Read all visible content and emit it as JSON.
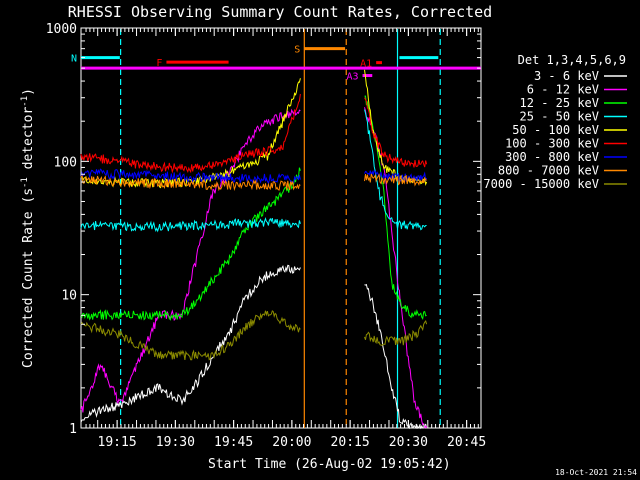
{
  "chart_data": {
    "type": "line",
    "title": "RHESSI Observing Summary Count Rates, Corrected",
    "xlabel": "Start Time (26-Aug-02 19:05:42)",
    "ylabel": "Corrected Count Rate (s⁻¹ detector⁻¹)",
    "ylabel_parts": {
      "a": "Corrected Count Rate (s",
      "b": "-1",
      "c": " detector",
      "d": "-1",
      "e": ")"
    },
    "y_scale": "log",
    "ylim": [
      1,
      1000
    ],
    "xlim_minutes": [
      0,
      103
    ],
    "y_ticks": [
      "1",
      "10",
      "100",
      "1000"
    ],
    "x_ticks": [
      {
        "label": "19:15",
        "min": 9.3
      },
      {
        "label": "19:30",
        "min": 24.3
      },
      {
        "label": "19:45",
        "min": 39.3
      },
      {
        "label": "20:00",
        "min": 54.3
      },
      {
        "label": "20:15",
        "min": 69.3
      },
      {
        "label": "20:30",
        "min": 84.3
      },
      {
        "label": "20:45",
        "min": 99.3
      }
    ],
    "legend_title": "Det 1,3,4,5,6,9",
    "legend_position": "right",
    "series": [
      {
        "name": "3 - 6 keV",
        "color": "#ffffff",
        "segments": [
          {
            "x": [
              0,
              10,
              20,
              26,
              30,
              34,
              38,
              42,
              46,
              50,
              56.5
            ],
            "y": [
              1.2,
              1.5,
              2.0,
              1.6,
              2.2,
              3.5,
              5,
              9,
              13,
              15,
              16
            ]
          },
          {
            "x": [
              73,
              75,
              78,
              80,
              82,
              86,
              89
            ],
            "y": [
              12,
              9,
              4,
              2,
              1.2,
              1,
              1
            ]
          }
        ]
      },
      {
        "name": "6 - 12 keV",
        "color": "#ff00ff",
        "segments": [
          {
            "x": [
              0,
              5,
              10,
              20,
              26,
              30,
              34,
              38,
              42,
              46,
              50,
              54,
              56.5
            ],
            "y": [
              1.3,
              3,
              1.5,
              7,
              7,
              20,
              60,
              80,
              130,
              180,
              210,
              230,
              240
            ]
          },
          {
            "x": [
              73,
              75,
              78,
              80,
              83,
              86,
              89
            ],
            "y": [
              250,
              180,
              90,
              30,
              6,
              1.5,
              1
            ]
          }
        ]
      },
      {
        "name": "12 - 25 keV",
        "color": "#00ff00",
        "segments": [
          {
            "x": [
              0,
              10,
              20,
              26,
              30,
              34,
              38,
              42,
              46,
              50,
              54,
              56.5
            ],
            "y": [
              7,
              7,
              7,
              7,
              9,
              13,
              18,
              30,
              40,
              50,
              65,
              85
            ]
          },
          {
            "x": [
              73,
              75,
              78,
              80,
              83,
              86,
              89
            ],
            "y": [
              320,
              200,
              60,
              12,
              8,
              7,
              7
            ]
          }
        ]
      },
      {
        "name": "25 - 50 keV",
        "color": "#00ffff",
        "segments": [
          {
            "x": [
              0,
              10,
              20,
              30,
              40,
              50,
              56.5
            ],
            "y": [
              33,
              33,
              32,
              33,
              34,
              35,
              34
            ]
          },
          {
            "x": [
              73,
              75,
              77,
              79,
              81,
              86,
              89
            ],
            "y": [
              250,
              120,
              55,
              38,
              34,
              33,
              33
            ]
          }
        ]
      },
      {
        "name": "50 - 100 keV",
        "color": "#ffff00",
        "segments": [
          {
            "x": [
              0,
              10,
              20,
              30,
              38,
              44,
              48,
              52,
              56.5
            ],
            "y": [
              72,
              70,
              68,
              70,
              82,
              95,
              110,
              200,
              420
            ]
          },
          {
            "x": [
              73,
              75,
              78,
              82,
              86,
              89
            ],
            "y": [
              500,
              180,
              90,
              75,
              70,
              70
            ]
          }
        ]
      },
      {
        "name": "100 - 300 keV",
        "color": "#ff0000",
        "segments": [
          {
            "x": [
              0,
              10,
              20,
              30,
              38,
              44,
              48,
              52,
              56.5
            ],
            "y": [
              110,
              100,
              90,
              90,
              100,
              115,
              120,
              125,
              320
            ]
          },
          {
            "x": [
              73,
              75,
              78,
              82,
              86,
              89
            ],
            "y": [
              320,
              170,
              110,
              100,
              95,
              95
            ]
          }
        ]
      },
      {
        "name": "300 - 800 keV",
        "color": "#0000ff",
        "segments": [
          {
            "x": [
              0,
              10,
              20,
              30,
              40,
              50,
              56.5
            ],
            "y": [
              82,
              80,
              78,
              76,
              75,
              74,
              73
            ]
          },
          {
            "x": [
              73,
              78,
              82,
              86,
              89
            ],
            "y": [
              80,
              78,
              76,
              75,
              75
            ]
          }
        ]
      },
      {
        "name": "800 - 7000 keV",
        "color": "#ff8800",
        "segments": [
          {
            "x": [
              0,
              10,
              20,
              30,
              40,
              50,
              56.5
            ],
            "y": [
              73,
              70,
              68,
              67,
              66,
              66,
              66
            ]
          },
          {
            "x": [
              73,
              78,
              82,
              86,
              89
            ],
            "y": [
              75,
              73,
              72,
              72,
              72
            ]
          }
        ]
      },
      {
        "name": "7000 - 15000 keV",
        "color": "#8b8b00",
        "segments": [
          {
            "x": [
              0,
              10,
              20,
              26,
              30,
              34,
              38,
              42,
              46,
              50,
              53,
              56.5
            ],
            "y": [
              6,
              5,
              3.5,
              3.5,
              3.5,
              3.5,
              4.2,
              5.5,
              7,
              7,
              6,
              5.5
            ]
          },
          {
            "x": [
              73,
              76,
              80,
              83,
              86,
              89
            ],
            "y": [
              5,
              4.5,
              4.5,
              4.5,
              5,
              6
            ]
          }
        ]
      }
    ],
    "annotations": [
      {
        "label": "N",
        "color": "#00ffff",
        "x1": 0,
        "x2": 10,
        "y": 600
      },
      {
        "label": "",
        "color": "#00ffff",
        "x1": 82,
        "x2": 92,
        "y": 600
      },
      {
        "label": "F",
        "color": "#ff0000",
        "x1": 22,
        "x2": 38,
        "y": 555
      },
      {
        "label": "S",
        "color": "#ff8800",
        "x1": 57.5,
        "x2": 68,
        "y": 700
      },
      {
        "label": "A1",
        "color": "#ff0000",
        "x1": 76,
        "x2": 77.5,
        "y": 550
      },
      {
        "label": "A3",
        "color": "#ff00ff",
        "x1": 72.5,
        "x2": 75,
        "y": 440
      }
    ],
    "attenuator_line": {
      "color": "#ff00ff",
      "y": 500
    },
    "vlines": [
      {
        "min": 10.2,
        "color": "#00ffff",
        "style": "dashed"
      },
      {
        "min": 92.5,
        "color": "#00ffff",
        "style": "dashed"
      },
      {
        "min": 57.5,
        "color": "#ff8800",
        "style": "solid"
      },
      {
        "min": 68.3,
        "color": "#ff8800",
        "style": "dashed"
      },
      {
        "min": 81.5,
        "color": "#00ffff",
        "style": "solid"
      }
    ],
    "grid": false
  },
  "footer": {
    "timestamp": "18-Oct-2021 21:54"
  }
}
